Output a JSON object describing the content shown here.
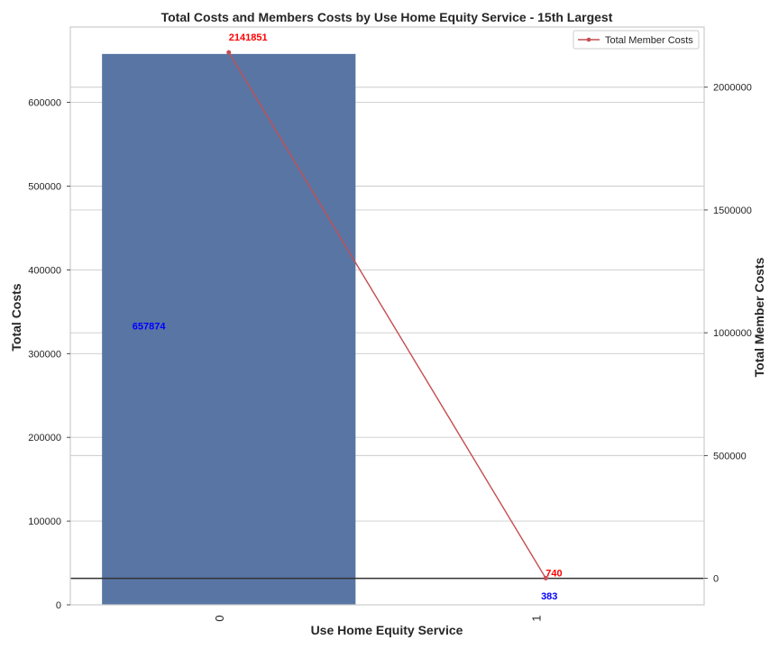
{
  "chart_data": {
    "type": "bar",
    "title": "Total Costs and Members Costs by Use Home Equity Service - 15th Largest",
    "xlabel": "Use Home Equity Service",
    "ylabel": "Total Costs",
    "y2label": "Total Member Costs",
    "categories": [
      "0",
      "1"
    ],
    "series": [
      {
        "name": "",
        "kind": "bar",
        "axis": "left",
        "values": [
          657874,
          383
        ],
        "labels": [
          "657874",
          "383"
        ]
      },
      {
        "name": "Total Member Costs",
        "kind": "line",
        "axis": "right",
        "values": [
          2141851,
          740
        ],
        "labels": [
          "2141851",
          "740"
        ]
      }
    ],
    "ylim": [
      0,
      690000
    ],
    "y2lim": [
      -108000,
      2245000
    ],
    "yticks": [
      "0",
      "100000",
      "200000",
      "300000",
      "400000",
      "500000",
      "600000"
    ],
    "y2ticks": [
      "0",
      "500000",
      "1000000",
      "1500000",
      "2000000"
    ],
    "legend": "top-right",
    "grid": true,
    "colors": {
      "bar": "#5875a4",
      "line": "#c44e52",
      "bar_label": "#0000ff",
      "line_label": "#ff0000",
      "grid": "#cccccc",
      "zero_line": "#333333"
    }
  }
}
